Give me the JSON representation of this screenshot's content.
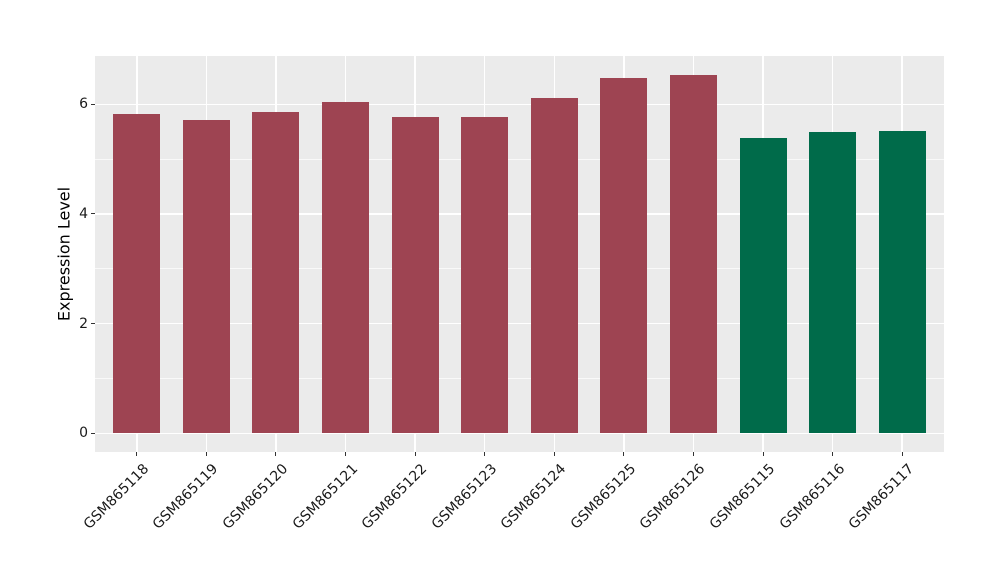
{
  "chart_data": {
    "type": "bar",
    "title": "",
    "xlabel": "",
    "ylabel": "Expression Level",
    "categories": [
      "GSM865118",
      "GSM865119",
      "GSM865120",
      "GSM865121",
      "GSM865122",
      "GSM865123",
      "GSM865124",
      "GSM865125",
      "GSM865126",
      "GSM865115",
      "GSM865116",
      "GSM865117"
    ],
    "values": [
      5.82,
      5.71,
      5.85,
      6.05,
      5.76,
      5.76,
      6.12,
      6.47,
      6.53,
      5.39,
      5.49,
      5.51
    ],
    "bar_colors": [
      "#9E4452",
      "#9E4452",
      "#9E4452",
      "#9E4452",
      "#9E4452",
      "#9E4452",
      "#9E4452",
      "#9E4452",
      "#9E4452",
      "#006B4A",
      "#006B4A",
      "#006B4A"
    ],
    "y_ticks": [
      0,
      2,
      4,
      6
    ],
    "y_tick_labels": [
      "0",
      "2",
      "4",
      "6"
    ],
    "y_minor_ticks": [
      1,
      3,
      5
    ],
    "ylim": [
      -0.34,
      6.88
    ],
    "x_tick_rotation_deg": 45,
    "legend": false,
    "grid": true,
    "colors": {
      "panel_bg": "#EBEBEB",
      "grid": "#FFFFFF",
      "background": "#FFFFFF",
      "tick": "#333333",
      "text": "#1A1A1A",
      "group_red": "#9E4452",
      "group_green": "#006B4A"
    }
  }
}
